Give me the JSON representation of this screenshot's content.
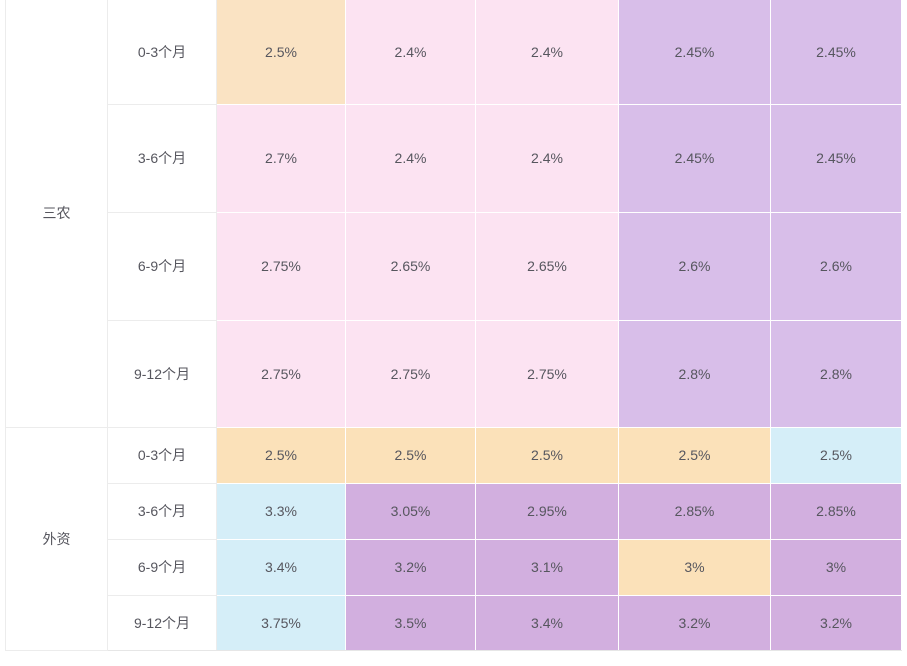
{
  "chart_data": {
    "type": "table",
    "description_groups": [
      "三农",
      "外资"
    ],
    "periods": [
      "0-3个月",
      "3-6个月",
      "6-9个月",
      "9-12个月"
    ],
    "colors": {
      "orange": "#fae3c3",
      "orange2": "#fbe1b9",
      "pink": "#fce3f2",
      "purple": "#d8bee9",
      "purple2": "#d2afdf",
      "blue": "#d5eef8",
      "text": "#56565e"
    },
    "groups": [
      {
        "label": "三农",
        "rows": [
          {
            "period": "0-3个月",
            "cells": [
              {
                "value": "2.5%",
                "color": "orange"
              },
              {
                "value": "2.4%",
                "color": "pink"
              },
              {
                "value": "2.4%",
                "color": "pink"
              },
              {
                "value": "2.45%",
                "color": "purple"
              },
              {
                "value": "2.45%",
                "color": "purple"
              }
            ]
          },
          {
            "period": "3-6个月",
            "cells": [
              {
                "value": "2.7%",
                "color": "pink"
              },
              {
                "value": "2.4%",
                "color": "pink"
              },
              {
                "value": "2.4%",
                "color": "pink"
              },
              {
                "value": "2.45%",
                "color": "purple"
              },
              {
                "value": "2.45%",
                "color": "purple"
              }
            ]
          },
          {
            "period": "6-9个月",
            "cells": [
              {
                "value": "2.75%",
                "color": "pink"
              },
              {
                "value": "2.65%",
                "color": "pink"
              },
              {
                "value": "2.65%",
                "color": "pink"
              },
              {
                "value": "2.6%",
                "color": "purple"
              },
              {
                "value": "2.6%",
                "color": "purple"
              }
            ]
          },
          {
            "period": "9-12个月",
            "cells": [
              {
                "value": "2.75%",
                "color": "pink"
              },
              {
                "value": "2.75%",
                "color": "pink"
              },
              {
                "value": "2.75%",
                "color": "pink"
              },
              {
                "value": "2.8%",
                "color": "purple"
              },
              {
                "value": "2.8%",
                "color": "purple"
              }
            ]
          }
        ]
      },
      {
        "label": "外资",
        "rows": [
          {
            "period": "0-3个月",
            "cells": [
              {
                "value": "2.5%",
                "color": "orange2"
              },
              {
                "value": "2.5%",
                "color": "orange2"
              },
              {
                "value": "2.5%",
                "color": "orange2"
              },
              {
                "value": "2.5%",
                "color": "orange2"
              },
              {
                "value": "2.5%",
                "color": "blue"
              }
            ]
          },
          {
            "period": "3-6个月",
            "cells": [
              {
                "value": "3.3%",
                "color": "blue"
              },
              {
                "value": "3.05%",
                "color": "purple2"
              },
              {
                "value": "2.95%",
                "color": "purple2"
              },
              {
                "value": "2.85%",
                "color": "purple2"
              },
              {
                "value": "2.85%",
                "color": "purple2"
              }
            ]
          },
          {
            "period": "6-9个月",
            "cells": [
              {
                "value": "3.4%",
                "color": "blue"
              },
              {
                "value": "3.2%",
                "color": "purple2"
              },
              {
                "value": "3.1%",
                "color": "purple2"
              },
              {
                "value": "3%",
                "color": "orange2"
              },
              {
                "value": "3%",
                "color": "purple2"
              }
            ]
          },
          {
            "period": "9-12个月",
            "cells": [
              {
                "value": "3.75%",
                "color": "blue"
              },
              {
                "value": "3.5%",
                "color": "purple2"
              },
              {
                "value": "3.4%",
                "color": "purple2"
              },
              {
                "value": "3.2%",
                "color": "purple2"
              },
              {
                "value": "3.2%",
                "color": "purple2"
              }
            ]
          }
        ]
      }
    ]
  }
}
